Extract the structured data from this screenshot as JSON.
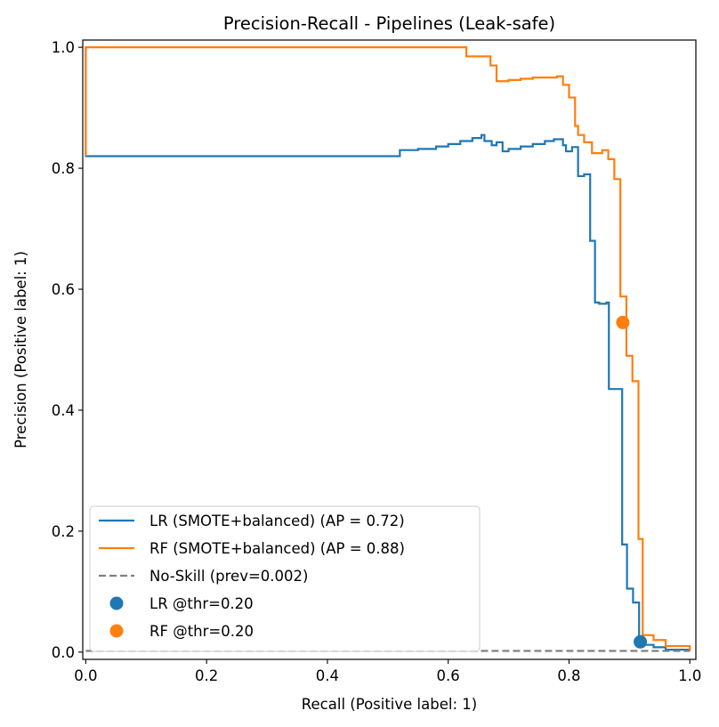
{
  "chart_data": {
    "type": "line",
    "title": "Precision-Recall - Pipelines (Leak-safe)",
    "xlabel": "Recall (Positive label: 1)",
    "ylabel": "Precision (Positive label: 1)",
    "xlim": [
      -0.005,
      1.01
    ],
    "ylim": [
      -0.012,
      1.012
    ],
    "xticks": [
      0.0,
      0.2,
      0.4,
      0.6,
      0.8,
      1.0
    ],
    "yticks": [
      0.0,
      0.2,
      0.4,
      0.6,
      0.8,
      1.0
    ],
    "xtick_labels": [
      "0.0",
      "0.2",
      "0.4",
      "0.6",
      "0.8",
      "1.0"
    ],
    "ytick_labels": [
      "0.0",
      "0.2",
      "0.4",
      "0.6",
      "0.8",
      "1.0"
    ],
    "grid": false,
    "legend_position": "bottom-left",
    "series": [
      {
        "name": "LR (SMOTE+balanced) (AP = 0.72)",
        "color": "#1f77b4",
        "style": "step",
        "x": [
          0.0,
          0.0,
          0.515,
          0.52,
          0.55,
          0.58,
          0.6,
          0.62,
          0.64,
          0.655,
          0.66,
          0.672,
          0.68,
          0.69,
          0.7,
          0.72,
          0.74,
          0.76,
          0.775,
          0.79,
          0.795,
          0.805,
          0.815,
          0.825,
          0.835,
          0.843,
          0.85,
          0.862,
          0.866,
          0.878,
          0.888,
          0.896,
          0.906,
          0.916,
          0.926,
          0.94,
          0.96,
          1.0
        ],
        "y": [
          1.0,
          0.82,
          0.82,
          0.83,
          0.832,
          0.836,
          0.84,
          0.845,
          0.85,
          0.855,
          0.845,
          0.838,
          0.843,
          0.828,
          0.832,
          0.836,
          0.84,
          0.845,
          0.848,
          0.838,
          0.828,
          0.835,
          0.787,
          0.79,
          0.68,
          0.578,
          0.576,
          0.578,
          0.435,
          0.435,
          0.178,
          0.105,
          0.082,
          0.015,
          0.012,
          0.008,
          0.004,
          0.002
        ]
      },
      {
        "name": "RF (SMOTE+balanced) (AP = 0.88)",
        "color": "#ff7f0e",
        "style": "step",
        "x": [
          0.0,
          0.0,
          0.59,
          0.63,
          0.67,
          0.68,
          0.7,
          0.72,
          0.74,
          0.76,
          0.78,
          0.79,
          0.8,
          0.81,
          0.815,
          0.825,
          0.838,
          0.855,
          0.865,
          0.875,
          0.885,
          0.895,
          0.905,
          0.915,
          0.922,
          0.94,
          0.96,
          1.0
        ],
        "y": [
          0.82,
          1.0,
          1.0,
          0.985,
          0.97,
          0.944,
          0.946,
          0.948,
          0.95,
          0.95,
          0.952,
          0.938,
          0.917,
          0.87,
          0.855,
          0.843,
          0.825,
          0.83,
          0.815,
          0.782,
          0.588,
          0.49,
          0.448,
          0.187,
          0.028,
          0.02,
          0.01,
          0.002
        ]
      },
      {
        "name": "No-Skill (prev=0.002)",
        "color": "#808080",
        "style": "dashed",
        "x": [
          0.0,
          1.0
        ],
        "y": [
          0.002,
          0.002
        ]
      }
    ],
    "markers": [
      {
        "name": "LR @thr=0.20",
        "color": "#1f77b4",
        "x": 0.918,
        "y": 0.017
      },
      {
        "name": "RF @thr=0.20",
        "color": "#ff7f0e",
        "x": 0.889,
        "y": 0.545
      }
    ]
  }
}
